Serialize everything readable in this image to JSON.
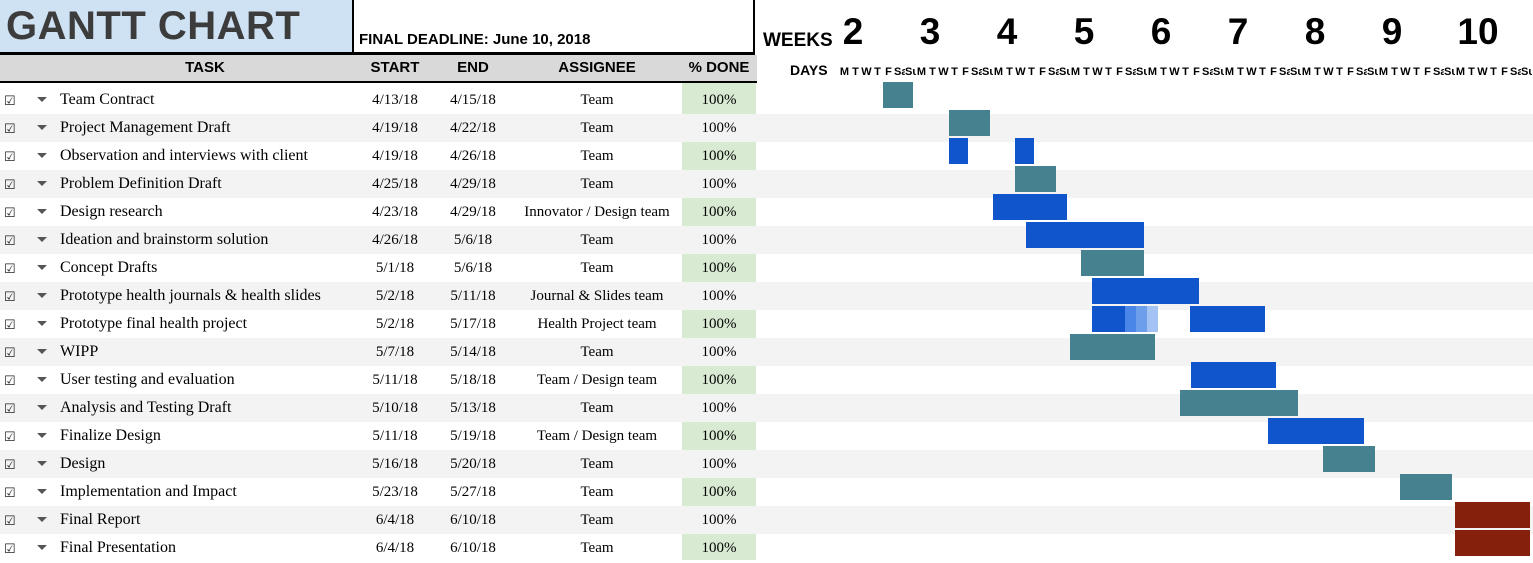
{
  "title": "GANTT CHART",
  "deadline": "FINAL DEADLINE: June 10, 2018",
  "headers": {
    "task": "TASK",
    "start": "START",
    "end": "END",
    "assignee": "ASSIGNEE",
    "done": "% DONE"
  },
  "timeline": {
    "weeks_label": "WEEKS",
    "weeks": [
      "2",
      "3",
      "4",
      "5",
      "6",
      "7",
      "8",
      "9",
      "10"
    ],
    "days_label": "DAYS",
    "days": [
      "M",
      "T",
      "W",
      "T",
      "F",
      "Sa",
      "Su"
    ]
  },
  "colors": {
    "title_bg": "#cfe2f3",
    "done_bg": "#d9ead3",
    "bar_teal": "#45818e",
    "bar_blue": "#1155cc",
    "bar_red": "#85200c"
  },
  "tasks": [
    {
      "checked": "☑",
      "name": "Team Contract",
      "start": "4/13/18",
      "end": "4/15/18",
      "assignee": "Team",
      "done": "100%"
    },
    {
      "checked": "☑",
      "name": "Project Management Draft",
      "start": "4/19/18",
      "end": "4/22/18",
      "assignee": "Team",
      "done": "100%"
    },
    {
      "checked": "☑",
      "name": "Observation and interviews with client",
      "start": "4/19/18",
      "end": "4/26/18",
      "assignee": "Team",
      "done": "100%"
    },
    {
      "checked": "☑",
      "name": "Problem Definition Draft",
      "start": "4/25/18",
      "end": "4/29/18",
      "assignee": "Team",
      "done": "100%"
    },
    {
      "checked": "☑",
      "name": "Design research",
      "start": "4/23/18",
      "end": "4/29/18",
      "assignee": "Innovator / Design team",
      "done": "100%"
    },
    {
      "checked": "☑",
      "name": "Ideation and brainstorm solution",
      "start": "4/26/18",
      "end": "5/6/18",
      "assignee": "Team",
      "done": "100%"
    },
    {
      "checked": "☑",
      "name": "Concept Drafts",
      "start": "5/1/18",
      "end": "5/6/18",
      "assignee": "Team",
      "done": "100%"
    },
    {
      "checked": "☑",
      "name": "Prototype health journals & health slides",
      "start": "5/2/18",
      "end": "5/11/18",
      "assignee": "Journal & Slides team",
      "done": "100%"
    },
    {
      "checked": "☑",
      "name": "Prototype final health project",
      "start": "5/2/18",
      "end": "5/17/18",
      "assignee": "Health Project team",
      "done": "100%"
    },
    {
      "checked": "☑",
      "name": "WIPP",
      "start": "5/7/18",
      "end": "5/14/18",
      "assignee": "Team",
      "done": "100%"
    },
    {
      "checked": "☑",
      "name": "User testing and evaluation",
      "start": "5/11/18",
      "end": "5/18/18",
      "assignee": "Team / Design team",
      "done": "100%"
    },
    {
      "checked": "☑",
      "name": "Analysis and Testing Draft",
      "start": "5/10/18",
      "end": "5/13/18",
      "assignee": "Team",
      "done": "100%"
    },
    {
      "checked": "☑",
      "name": "Finalize Design",
      "start": "5/11/18",
      "end": "5/19/18",
      "assignee": "Team / Design team",
      "done": "100%"
    },
    {
      "checked": "☑",
      "name": "Design",
      "start": "5/16/18",
      "end": "5/20/18",
      "assignee": "Team",
      "done": "100%"
    },
    {
      "checked": "☑",
      "name": "Implementation and Impact",
      "start": "5/23/18",
      "end": "5/27/18",
      "assignee": "Team",
      "done": "100%"
    },
    {
      "checked": "☑",
      "name": "Final Report",
      "start": "6/4/18",
      "end": "6/10/18",
      "assignee": "Team",
      "done": "100%"
    },
    {
      "checked": "☑",
      "name": "Final Presentation",
      "start": "6/4/18",
      "end": "6/10/18",
      "assignee": "Team",
      "done": "100%"
    }
  ]
}
